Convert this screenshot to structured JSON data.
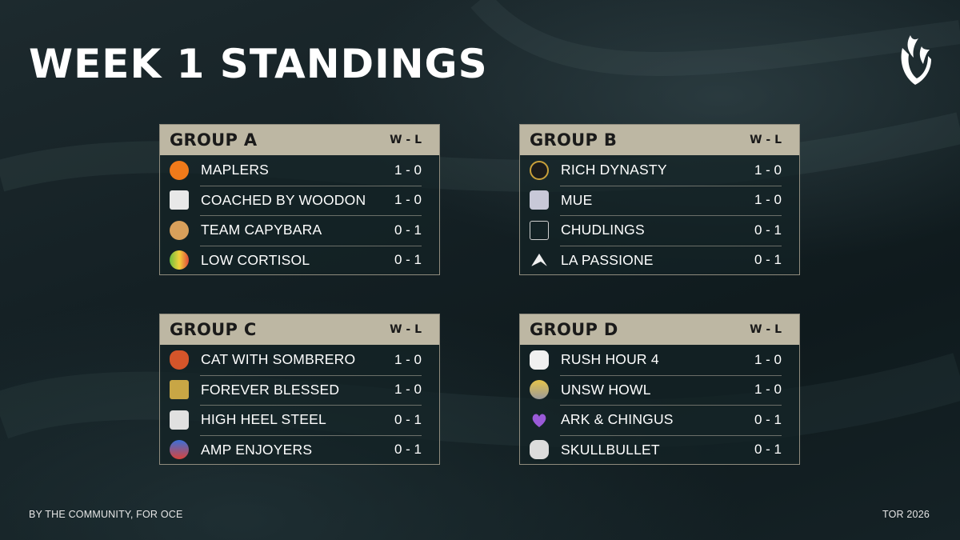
{
  "title": "WEEK 1 STANDINGS",
  "record_header": "W - L",
  "footer_left": "BY THE COMMUNITY, FOR OCE",
  "footer_right": "TOR 2026",
  "colors": {
    "header_band": "#bdb7a3",
    "panel_border": "#8f8b7d",
    "background": "#142024"
  },
  "groups": [
    {
      "name": "GROUP A",
      "teams": [
        {
          "name": "MAPLERS",
          "record": "1 - 0",
          "icon": "maplers-logo-icon",
          "icon_color": "#f07a1a"
        },
        {
          "name": "COACHED BY WOODON",
          "record": "1 - 0",
          "icon": "cbw-logo-icon",
          "icon_color": "#e8e8e8"
        },
        {
          "name": "TEAM CAPYBARA",
          "record": "0 - 1",
          "icon": "capybara-logo-icon",
          "icon_color": "#d9a05b"
        },
        {
          "name": "LOW CORTISOL",
          "record": "0 - 1",
          "icon": "low-cortisol-logo-icon",
          "icon_color": "#6cbf3f"
        }
      ]
    },
    {
      "name": "GROUP B",
      "teams": [
        {
          "name": "RICH DYNASTY",
          "record": "1 - 0",
          "icon": "rich-dynasty-logo-icon",
          "icon_color": "#c9a03a"
        },
        {
          "name": "MUE",
          "record": "1 - 0",
          "icon": "mue-logo-icon",
          "icon_color": "#c8c8d8"
        },
        {
          "name": "CHUDLINGS",
          "record": "0 - 1",
          "icon": "chudlings-logo-icon",
          "icon_color": "#d0d0d0"
        },
        {
          "name": "LA PASSIONE",
          "record": "0 - 1",
          "icon": "la-passione-logo-icon",
          "icon_color": "#f0f0f0"
        }
      ]
    },
    {
      "name": "GROUP C",
      "teams": [
        {
          "name": "CAT WITH SOMBRERO",
          "record": "1 - 0",
          "icon": "cat-sombrero-logo-icon",
          "icon_color": "#d5552a"
        },
        {
          "name": "FOREVER BLESSED",
          "record": "1 - 0",
          "icon": "forever-blessed-logo-icon",
          "icon_color": "#c8a645"
        },
        {
          "name": "HIGH HEEL STEEL",
          "record": "0 - 1",
          "icon": "high-heel-steel-logo-icon",
          "icon_color": "#e0e0e0"
        },
        {
          "name": "AMP ENJOYERS",
          "record": "0 - 1",
          "icon": "amp-enjoyers-logo-icon",
          "icon_color": "#3b6fd8"
        }
      ]
    },
    {
      "name": "GROUP D",
      "teams": [
        {
          "name": "RUSH HOUR 4",
          "record": "1 - 0",
          "icon": "rush-hour-logo-icon",
          "icon_color": "#f0f0f0"
        },
        {
          "name": "UNSW HOWL",
          "record": "1 - 0",
          "icon": "unsw-howl-logo-icon",
          "icon_color": "#e6c44a"
        },
        {
          "name": "ARK & CHINGUS",
          "record": "0 - 1",
          "icon": "ark-chingus-logo-icon",
          "icon_color": "#9a5ad8"
        },
        {
          "name": "SKULLBULLET",
          "record": "0 - 1",
          "icon": "skullbullet-logo-icon",
          "icon_color": "#dcdcdc"
        }
      ]
    }
  ]
}
